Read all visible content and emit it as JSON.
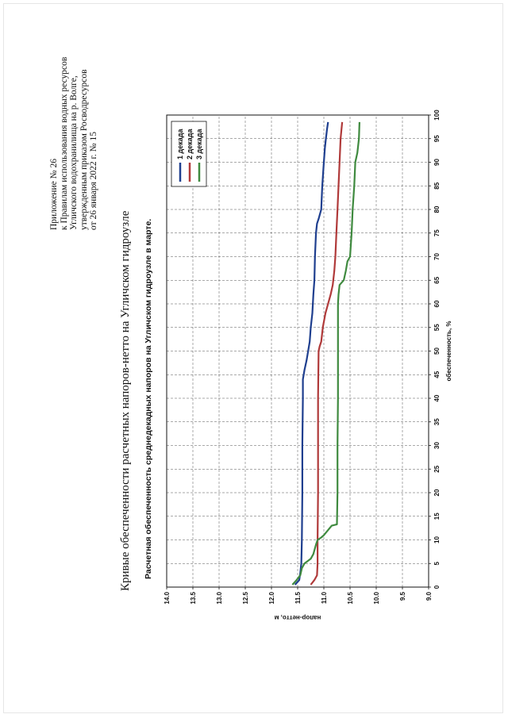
{
  "appendix": {
    "lines": [
      "Приложение № 26",
      "к Правилам использования водных ресурсов",
      "Угличского водохранилища на р. Волге,",
      "утвержденным приказом Росводресурсов",
      "от 26 января 2022 г. № 15"
    ]
  },
  "document_title": "Кривые обеспеченности расчетных напоров-нетто на Угличском гидроузле",
  "chart_data": {
    "type": "line",
    "title": "Расчетная обеспеченность среднедекадных напоров на Угличском гидроузле в марте.",
    "xlabel": "обеспеченность, %",
    "ylabel": "напор-нетто, м",
    "xlim": [
      0,
      100
    ],
    "ylim": [
      9.0,
      14.0
    ],
    "x_ticks": [
      0,
      5,
      10,
      15,
      20,
      25,
      30,
      35,
      40,
      45,
      50,
      55,
      60,
      65,
      70,
      75,
      80,
      85,
      90,
      95,
      100
    ],
    "y_ticks": [
      9.0,
      9.5,
      10.0,
      10.5,
      11.0,
      11.5,
      12.0,
      12.5,
      13.0,
      13.5,
      14.0
    ],
    "y_tick_labels": [
      "9.0",
      "9.5",
      "10.0",
      "10.5",
      "11.0",
      "11.5",
      "12.0",
      "12.5",
      "13.0",
      "13.5",
      "14.0"
    ],
    "grid": true,
    "legend": "top-right",
    "series": [
      {
        "name": "1 декада",
        "color": "#1f3f8f",
        "points": [
          [
            0.5,
            11.55
          ],
          [
            1.5,
            11.47
          ],
          [
            3,
            11.45
          ],
          [
            5,
            11.43
          ],
          [
            10,
            11.42
          ],
          [
            20,
            11.41
          ],
          [
            30,
            11.41
          ],
          [
            40,
            11.4
          ],
          [
            44,
            11.4
          ],
          [
            46,
            11.37
          ],
          [
            48,
            11.33
          ],
          [
            50,
            11.3
          ],
          [
            52,
            11.27
          ],
          [
            55,
            11.25
          ],
          [
            58,
            11.22
          ],
          [
            62,
            11.2
          ],
          [
            65,
            11.18
          ],
          [
            70,
            11.17
          ],
          [
            75,
            11.15
          ],
          [
            77,
            11.13
          ],
          [
            78,
            11.1
          ],
          [
            80,
            11.05
          ],
          [
            85,
            11.03
          ],
          [
            90,
            11.0
          ],
          [
            93,
            10.98
          ],
          [
            95,
            10.96
          ],
          [
            97,
            10.94
          ],
          [
            98.5,
            10.92
          ]
        ]
      },
      {
        "name": "2 декада",
        "color": "#b03a3a",
        "points": [
          [
            0.5,
            11.25
          ],
          [
            1.5,
            11.18
          ],
          [
            2.5,
            11.13
          ],
          [
            5,
            11.12
          ],
          [
            10,
            11.12
          ],
          [
            20,
            11.11
          ],
          [
            30,
            11.11
          ],
          [
            40,
            11.11
          ],
          [
            50,
            11.1
          ],
          [
            51,
            11.08
          ],
          [
            52,
            11.05
          ],
          [
            55,
            11.02
          ],
          [
            58,
            10.97
          ],
          [
            60,
            10.92
          ],
          [
            62,
            10.87
          ],
          [
            64,
            10.83
          ],
          [
            67,
            10.8
          ],
          [
            70,
            10.78
          ],
          [
            75,
            10.76
          ],
          [
            80,
            10.74
          ],
          [
            85,
            10.72
          ],
          [
            90,
            10.7
          ],
          [
            95,
            10.68
          ],
          [
            98.5,
            10.65
          ]
        ]
      },
      {
        "name": "3 декада",
        "color": "#3f8a3f",
        "points": [
          [
            0.5,
            11.6
          ],
          [
            1.5,
            11.52
          ],
          [
            2.5,
            11.45
          ],
          [
            4,
            11.42
          ],
          [
            5,
            11.37
          ],
          [
            6,
            11.25
          ],
          [
            7,
            11.2
          ],
          [
            9,
            11.15
          ],
          [
            10,
            11.12
          ],
          [
            10.5,
            11.05
          ],
          [
            11,
            11.0
          ],
          [
            13,
            10.85
          ],
          [
            13.3,
            10.75
          ],
          [
            20,
            10.74
          ],
          [
            30,
            10.74
          ],
          [
            40,
            10.73
          ],
          [
            50,
            10.73
          ],
          [
            60,
            10.73
          ],
          [
            62,
            10.72
          ],
          [
            64,
            10.7
          ],
          [
            65,
            10.62
          ],
          [
            67,
            10.58
          ],
          [
            69,
            10.55
          ],
          [
            70,
            10.5
          ],
          [
            75,
            10.47
          ],
          [
            80,
            10.45
          ],
          [
            85,
            10.42
          ],
          [
            90,
            10.4
          ],
          [
            92,
            10.36
          ],
          [
            95,
            10.33
          ],
          [
            98.5,
            10.32
          ]
        ]
      }
    ]
  }
}
